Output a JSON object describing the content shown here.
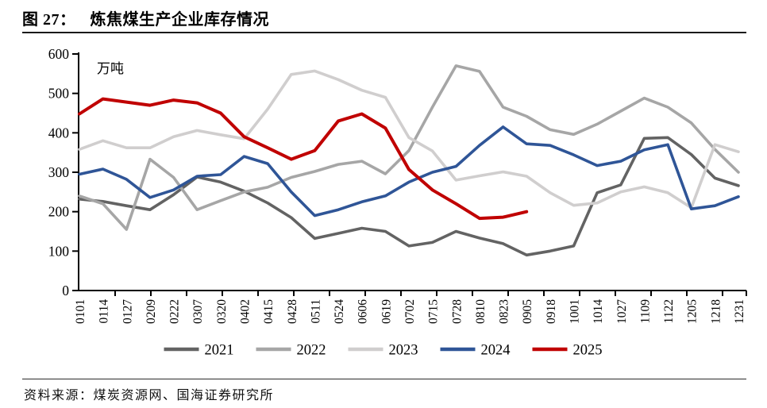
{
  "figure": {
    "label": "图 27：",
    "title": "炼焦煤生产企业库存情况"
  },
  "source": {
    "text": "资料来源：煤炭资源网、国海证券研究所"
  },
  "chart_data": {
    "type": "line",
    "title": "",
    "unit_label": "万吨",
    "xlabel": "",
    "ylabel": "",
    "ylim": [
      0,
      600
    ],
    "yticks": [
      0,
      100,
      200,
      300,
      400,
      500,
      600
    ],
    "grid": false,
    "legend_position": "bottom",
    "categories": [
      "0101",
      "0114",
      "0127",
      "0209",
      "0222",
      "0307",
      "0320",
      "0402",
      "0415",
      "0428",
      "0511",
      "0524",
      "0606",
      "0619",
      "0702",
      "0715",
      "0728",
      "0810",
      "0823",
      "0905",
      "0918",
      "1001",
      "1014",
      "1027",
      "1109",
      "1122",
      "1205",
      "1218",
      "1231"
    ],
    "series": [
      {
        "name": "2021",
        "color": "#636363",
        "values": [
          232,
          226,
          215,
          205,
          243,
          288,
          275,
          252,
          222,
          185,
          132,
          145,
          158,
          150,
          113,
          122,
          150,
          133,
          119,
          90,
          100,
          113,
          248,
          268,
          386,
          388,
          345,
          285,
          266
        ]
      },
      {
        "name": "2022",
        "color": "#a6a6a6",
        "values": [
          240,
          220,
          155,
          333,
          287,
          205,
          228,
          250,
          262,
          287,
          302,
          320,
          328,
          296,
          355,
          465,
          570,
          556,
          465,
          442,
          408,
          396,
          422,
          455,
          488,
          465,
          425,
          358,
          300
        ]
      },
      {
        "name": "2023",
        "color": "#d0cece",
        "values": [
          358,
          380,
          362,
          362,
          390,
          406,
          395,
          385,
          460,
          548,
          557,
          535,
          508,
          490,
          388,
          354,
          280,
          291,
          301,
          290,
          248,
          216,
          222,
          250,
          263,
          248,
          210,
          370,
          352
        ]
      },
      {
        "name": "2024",
        "color": "#2f5597",
        "values": [
          295,
          308,
          282,
          236,
          255,
          290,
          294,
          340,
          322,
          250,
          190,
          205,
          225,
          240,
          275,
          300,
          315,
          368,
          415,
          372,
          368,
          344,
          317,
          328,
          357,
          370,
          207,
          215,
          238
        ]
      },
      {
        "name": "2025",
        "color": "#c00000",
        "values": [
          448,
          486,
          478,
          470,
          483,
          476,
          450,
          390,
          362,
          333,
          355,
          430,
          448,
          412,
          307,
          255,
          220,
          183,
          186,
          200
        ]
      }
    ]
  }
}
